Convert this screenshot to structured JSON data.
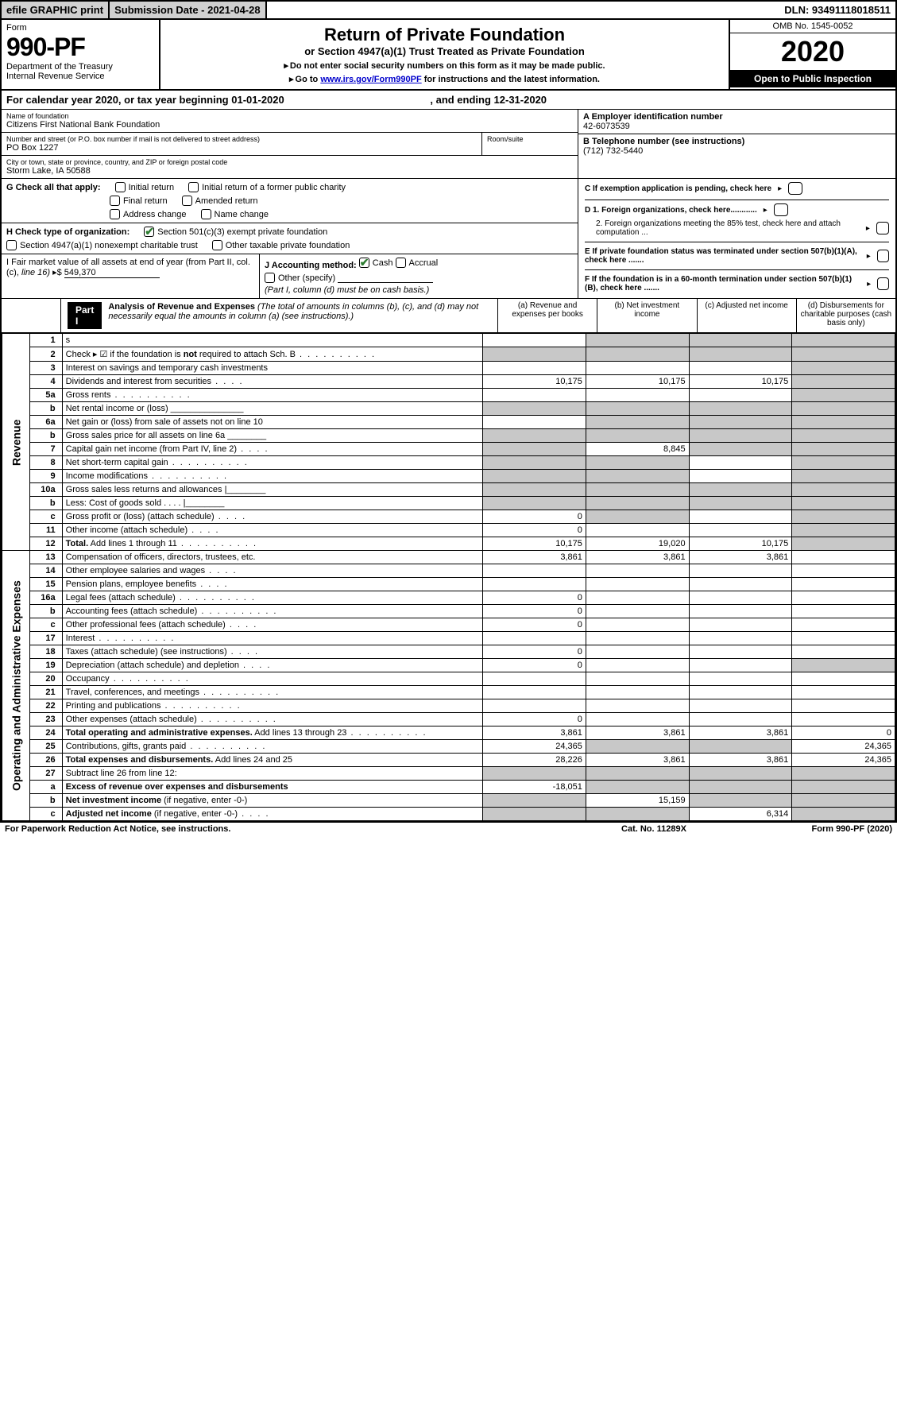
{
  "topbar": {
    "efile": "efile GRAPHIC print",
    "subdate": "Submission Date - 2021-04-28",
    "dln": "DLN: 93491118018511"
  },
  "header": {
    "form_word": "Form",
    "form_no": "990-PF",
    "dept1": "Department of the Treasury",
    "dept2": "Internal Revenue Service",
    "title": "Return of Private Foundation",
    "subtitle": "or Section 4947(a)(1) Trust Treated as Private Foundation",
    "note1": "Do not enter social security numbers on this form as it may be made public.",
    "note2_a": "Go to ",
    "note2_link": "www.irs.gov/Form990PF",
    "note2_b": " for instructions and the latest information.",
    "omb": "OMB No. 1545-0052",
    "year": "2020",
    "open": "Open to Public Inspection"
  },
  "cal": {
    "text_a": "For calendar year 2020, or tax year beginning ",
    "begin": "01-01-2020",
    "text_b": ", and ending ",
    "end": "12-31-2020"
  },
  "info": {
    "name_lbl": "Name of foundation",
    "name": "Citizens First National Bank Foundation",
    "addr_lbl": "Number and street (or P.O. box number if mail is not delivered to street address)",
    "addr": "PO Box 1227",
    "room_lbl": "Room/suite",
    "city_lbl": "City or town, state or province, country, and ZIP or foreign postal code",
    "city": "Storm Lake, IA  50588",
    "a_lbl": "A Employer identification number",
    "a_val": "42-6073539",
    "b_lbl": "B Telephone number (see instructions)",
    "b_val": "(712) 732-5440",
    "c_lbl": "C If exemption application is pending, check here",
    "d1": "D 1. Foreign organizations, check here............",
    "d2": "2. Foreign organizations meeting the 85% test, check here and attach computation ...",
    "e": "E  If private foundation status was terminated under section 507(b)(1)(A), check here .......",
    "f": "F  If the foundation is in a 60-month termination under section 507(b)(1)(B), check here .......",
    "g_lbl": "G Check all that apply:",
    "g_opts": [
      "Initial return",
      "Initial return of a former public charity",
      "Final return",
      "Amended return",
      "Address change",
      "Name change"
    ],
    "h_lbl": "H Check type of organization:",
    "h1": "Section 501(c)(3) exempt private foundation",
    "h2": "Section 4947(a)(1) nonexempt charitable trust",
    "h3": "Other taxable private foundation",
    "i_lbl_a": "I Fair market value of all assets at end of year (from Part II, col. (c),",
    "i_lbl_b": "line 16)",
    "i_arrow": "▸$",
    "i_val": "549,370",
    "j_lbl": "J Accounting method:",
    "j_cash": "Cash",
    "j_accrual": "Accrual",
    "j_other": "Other (specify)",
    "j_note": "(Part I, column (d) must be on cash basis.)"
  },
  "part1": {
    "badge": "Part I",
    "title": "Analysis of Revenue and Expenses",
    "title_note": " (The total of amounts in columns (b), (c), and (d) may not necessarily equal the amounts in column (a) (see instructions).)",
    "col_a": "(a)   Revenue and expenses per books",
    "col_b": "(b)  Net investment income",
    "col_c": "(c)  Adjusted net income",
    "col_d": "(d)  Disbursements for charitable purposes (cash basis only)",
    "side_revenue": "Revenue",
    "side_expenses": "Operating and Administrative Expenses"
  },
  "rows": [
    {
      "n": "1",
      "d": "s",
      "a": "",
      "b": "s",
      "c": "s"
    },
    {
      "n": "2",
      "d": "Check ▸ ☑ if the foundation is <b>not</b> required to attach Sch. B",
      "dots": true,
      "a": "s",
      "b": "s",
      "c": "s",
      "dd": "s"
    },
    {
      "n": "3",
      "d": "Interest on savings and temporary cash investments",
      "a": "",
      "b": "",
      "c": "",
      "dd": "s"
    },
    {
      "n": "4",
      "d": "Dividends and interest from securities",
      "dots_s": true,
      "a": "10,175",
      "b": "10,175",
      "c": "10,175",
      "dd": "s"
    },
    {
      "n": "5a",
      "d": "Gross rents",
      "dots": true,
      "a": "",
      "b": "",
      "c": "",
      "dd": "s"
    },
    {
      "n": "b",
      "d": "Net rental income or (loss)   _______________",
      "a": "s",
      "b": "s",
      "c": "s",
      "dd": "s"
    },
    {
      "n": "6a",
      "d": "Net gain or (loss) from sale of assets not on line 10",
      "a": "",
      "b": "s",
      "c": "s",
      "dd": "s"
    },
    {
      "n": "b",
      "d": "Gross sales price for all assets on line 6a  ________",
      "a": "s",
      "b": "s",
      "c": "s",
      "dd": "s"
    },
    {
      "n": "7",
      "d": "Capital gain net income (from Part IV, line 2)",
      "dots_s": true,
      "a": "s",
      "b": "8,845",
      "c": "s",
      "dd": "s"
    },
    {
      "n": "8",
      "d": "Net short-term capital gain",
      "dots": true,
      "a": "s",
      "b": "s",
      "c": "",
      "dd": "s"
    },
    {
      "n": "9",
      "d": "Income modifications",
      "dots": true,
      "a": "s",
      "b": "s",
      "c": "",
      "dd": "s"
    },
    {
      "n": "10a",
      "d": "Gross sales less returns and allowances   |________",
      "a": "s",
      "b": "s",
      "c": "s",
      "dd": "s"
    },
    {
      "n": "b",
      "d": "Less: Cost of goods sold       .  .  .  .   |________",
      "a": "s",
      "b": "s",
      "c": "s",
      "dd": "s"
    },
    {
      "n": "c",
      "d": "Gross profit or (loss) (attach schedule)",
      "dots_s": true,
      "a": "0",
      "b": "s",
      "c": "",
      "dd": "s"
    },
    {
      "n": "11",
      "d": "Other income (attach schedule)",
      "dots_s": true,
      "a": "0",
      "b": "",
      "c": "",
      "dd": "s"
    },
    {
      "n": "12",
      "d": "<b>Total.</b> Add lines 1 through 11",
      "dots": true,
      "a": "10,175",
      "b": "19,020",
      "c": "10,175",
      "dd": "s"
    }
  ],
  "rows_exp": [
    {
      "n": "13",
      "d": "Compensation of officers, directors, trustees, etc.",
      "a": "3,861",
      "b": "3,861",
      "c": "3,861",
      "dd": ""
    },
    {
      "n": "14",
      "d": "Other employee salaries and wages",
      "dots_s": true,
      "a": "",
      "b": "",
      "c": "",
      "dd": ""
    },
    {
      "n": "15",
      "d": "Pension plans, employee benefits",
      "dots_s": true,
      "a": "",
      "b": "",
      "c": "",
      "dd": ""
    },
    {
      "n": "16a",
      "d": "Legal fees (attach schedule)",
      "dots": true,
      "a": "0",
      "b": "",
      "c": "",
      "dd": ""
    },
    {
      "n": "b",
      "d": "Accounting fees (attach schedule)",
      "dots": true,
      "a": "0",
      "b": "",
      "c": "",
      "dd": ""
    },
    {
      "n": "c",
      "d": "Other professional fees (attach schedule)",
      "dots_s": true,
      "a": "0",
      "b": "",
      "c": "",
      "dd": ""
    },
    {
      "n": "17",
      "d": "Interest",
      "dots": true,
      "a": "",
      "b": "",
      "c": "",
      "dd": ""
    },
    {
      "n": "18",
      "d": "Taxes (attach schedule) (see instructions)",
      "dots_s": true,
      "a": "0",
      "b": "",
      "c": "",
      "dd": ""
    },
    {
      "n": "19",
      "d": "Depreciation (attach schedule) and depletion",
      "dots_s": true,
      "a": "0",
      "b": "",
      "c": "",
      "dd": "s"
    },
    {
      "n": "20",
      "d": "Occupancy",
      "dots": true,
      "a": "",
      "b": "",
      "c": "",
      "dd": ""
    },
    {
      "n": "21",
      "d": "Travel, conferences, and meetings",
      "dots": true,
      "a": "",
      "b": "",
      "c": "",
      "dd": ""
    },
    {
      "n": "22",
      "d": "Printing and publications",
      "dots": true,
      "a": "",
      "b": "",
      "c": "",
      "dd": ""
    },
    {
      "n": "23",
      "d": "Other expenses (attach schedule)",
      "dots": true,
      "a": "0",
      "b": "",
      "c": "",
      "dd": ""
    },
    {
      "n": "24",
      "d": "<b>Total operating and administrative expenses.</b> Add lines 13 through 23",
      "dots": true,
      "a": "3,861",
      "b": "3,861",
      "c": "3,861",
      "dd": "0"
    },
    {
      "n": "25",
      "d": "Contributions, gifts, grants paid",
      "dots": true,
      "a": "24,365",
      "b": "s",
      "c": "s",
      "dd": "24,365"
    },
    {
      "n": "26",
      "d": "<b>Total expenses and disbursements.</b> Add lines 24 and 25",
      "a": "28,226",
      "b": "3,861",
      "c": "3,861",
      "dd": "24,365"
    },
    {
      "n": "27",
      "d": "Subtract line 26 from line 12:",
      "a": "s",
      "b": "s",
      "c": "s",
      "dd": "s"
    },
    {
      "n": "a",
      "d": "<b>Excess of revenue over expenses and disbursements</b>",
      "a": "-18,051",
      "b": "s",
      "c": "s",
      "dd": "s"
    },
    {
      "n": "b",
      "d": "<b>Net investment income</b> (if negative, enter -0-)",
      "a": "s",
      "b": "15,159",
      "c": "s",
      "dd": "s"
    },
    {
      "n": "c",
      "d": "<b>Adjusted net income</b> (if negative, enter -0-)",
      "dots_s": true,
      "a": "s",
      "b": "s",
      "c": "6,314",
      "dd": "s"
    }
  ],
  "footer": {
    "left": "For Paperwork Reduction Act Notice, see instructions.",
    "mid": "Cat. No. 11289X",
    "right": "Form 990-PF (2020)"
  },
  "colors": {
    "shade": "#c8c8c8",
    "link": "#0000cc",
    "check": "#2e7d32"
  }
}
